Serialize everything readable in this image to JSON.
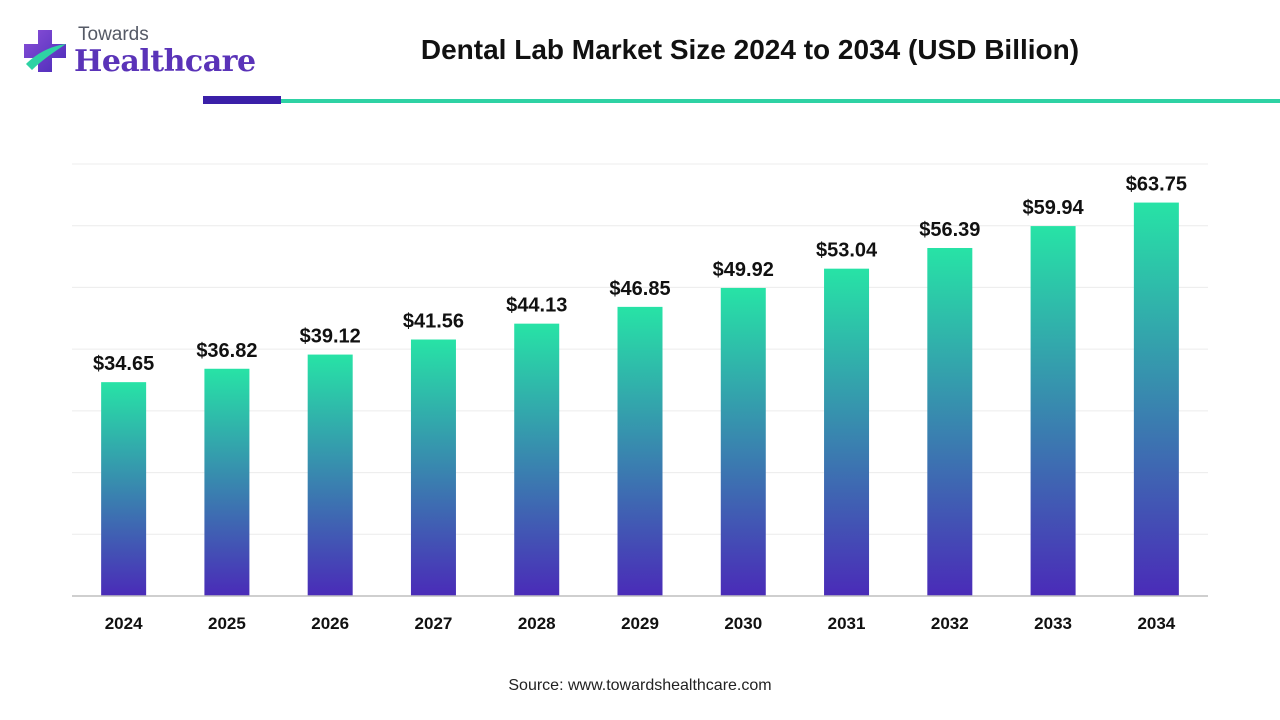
{
  "brand": {
    "line1": "Towards",
    "line2": "Healthcare",
    "colors": {
      "primary": "#5a33b8",
      "accent": "#2ed2a4"
    }
  },
  "source": "Source: www.towardshealthcare.com",
  "chart_data": {
    "type": "bar",
    "title": "Dental Lab Market Size 2024 to 2034 (USD Billion)",
    "categories": [
      "2024",
      "2025",
      "2026",
      "2027",
      "2028",
      "2029",
      "2030",
      "2031",
      "2032",
      "2033",
      "2034"
    ],
    "values": [
      34.65,
      36.82,
      39.12,
      41.56,
      44.13,
      46.85,
      49.92,
      53.04,
      56.39,
      59.94,
      63.75
    ],
    "value_labels": [
      "$34.65",
      "$36.82",
      "$39.12",
      "$41.56",
      "$44.13",
      "$46.85",
      "$49.92",
      "$53.04",
      "$56.39",
      "$59.94",
      "$63.75"
    ],
    "ylim": [
      0,
      70
    ],
    "grid": true,
    "legend": "none",
    "bar_gradient": {
      "top": "#27e3a6",
      "bottom": "#4a2bb8"
    }
  }
}
